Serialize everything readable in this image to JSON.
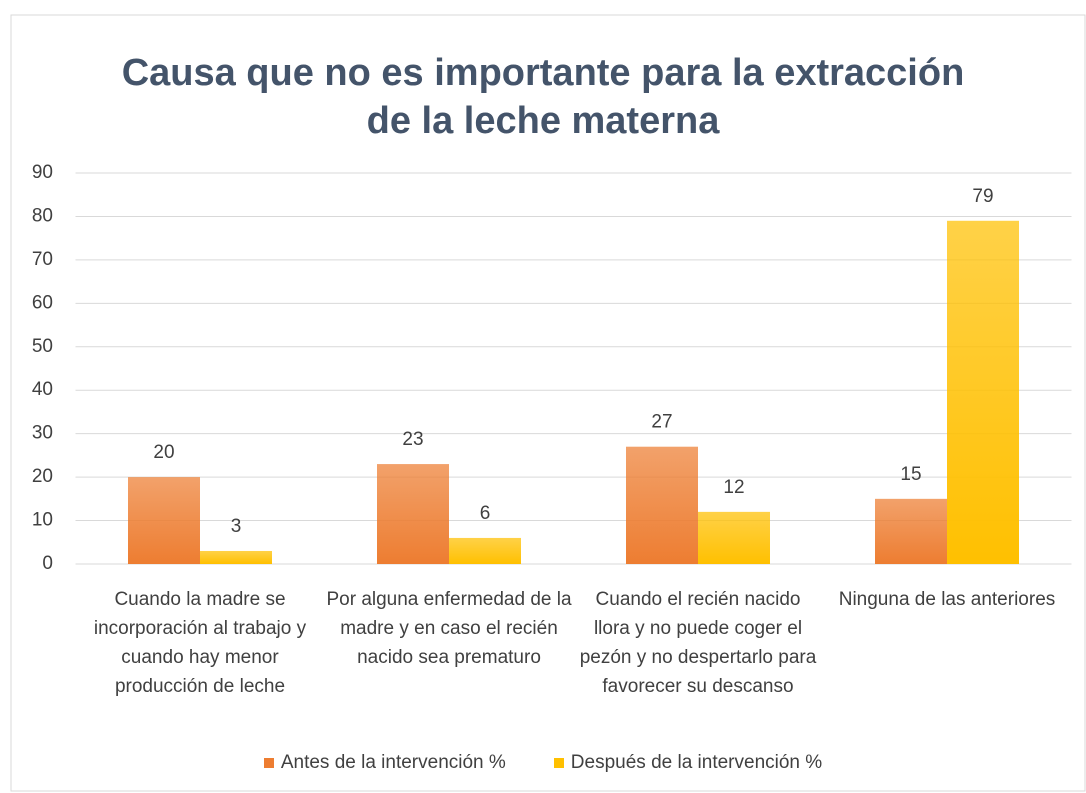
{
  "chart_data": {
    "type": "bar",
    "title": [
      "Causa que no es importante para la extracción",
      "de la leche materna"
    ],
    "categories": [
      "Cuando la madre se incorporación al trabajo y cuando hay menor producción de leche",
      "Por alguna enfermedad de la madre y en caso el recién nacido sea prematuro",
      "Cuando el recién nacido llora y no puede coger el pezón y no despertarlo para favorecer su descanso",
      "Ninguna de las anteriores"
    ],
    "series": [
      {
        "name": "Antes de la intervención %",
        "color": "#ed7d31",
        "values": [
          20,
          23,
          27,
          15
        ]
      },
      {
        "name": "Después de la intervención %",
        "color": "#ffc000",
        "values": [
          3,
          6,
          12,
          79
        ]
      }
    ],
    "ylim": [
      0,
      90
    ],
    "yticks": [
      0,
      10,
      20,
      30,
      40,
      50,
      60,
      70,
      80,
      90
    ],
    "grid": true,
    "legend": "bottom"
  }
}
